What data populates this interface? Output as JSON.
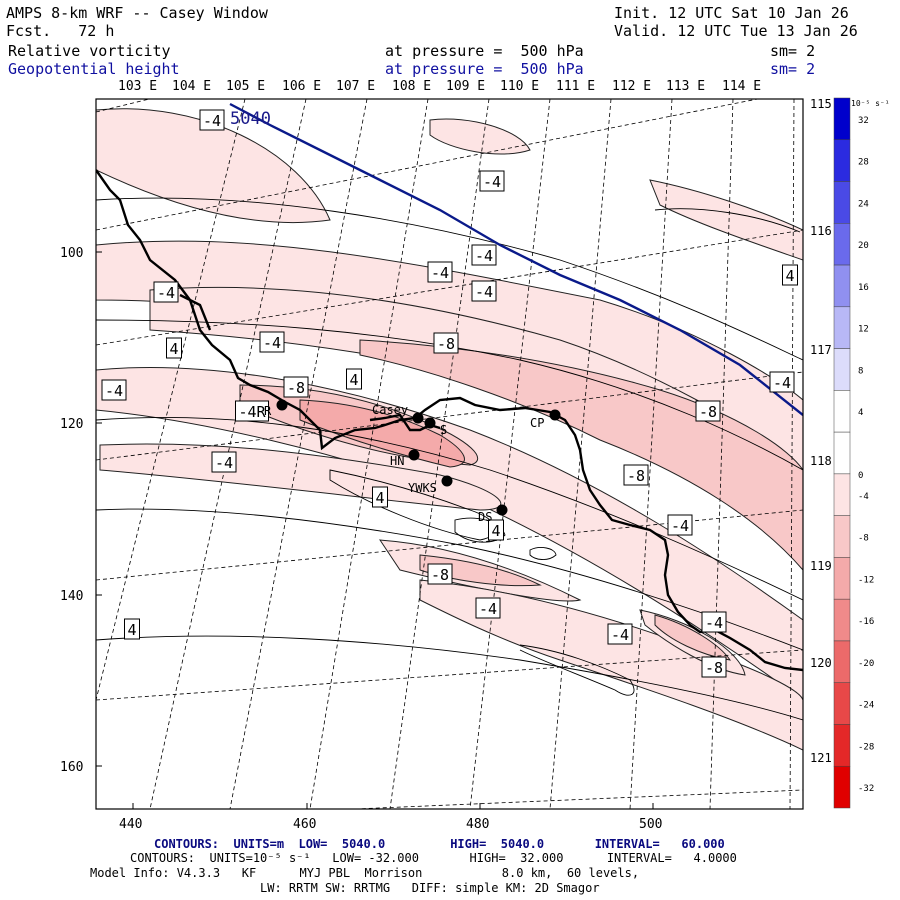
{
  "header": {
    "title": "AMPS 8-km WRF -- Casey Window",
    "forecast": "Fcst.   72 h",
    "init": "Init. 12 UTC Sat 10 Jan 26",
    "valid": "Valid. 12 UTC Tue 13 Jan 26",
    "field1_name": "Relative vorticity",
    "field1_pressure": "at pressure =  500 hPa",
    "field1_sm": "sm= 2",
    "field2_name": "Geopotential height",
    "field2_pressure": "at pressure =  500 hPa",
    "field2_sm": "sm= 2"
  },
  "map": {
    "top_longitudes": [
      "103 E",
      "104 E",
      "105 E",
      "106 E",
      "107 E",
      "108 E",
      "109 E",
      "110 E",
      "111 E",
      "112 E",
      "113 E",
      "114 E"
    ],
    "right_longitudes": [
      "115 E",
      "116 E",
      "117 E",
      "118 E",
      "119 E",
      "120 E",
      "121 E"
    ],
    "x_ticks": [
      "440",
      "460",
      "480",
      "500"
    ],
    "y_ticks": [
      "100",
      "120",
      "140",
      "160"
    ],
    "height_contour_label": "5040",
    "vorticity_labels": [
      "-4",
      "-4",
      "-4",
      "-4",
      "-4",
      "-4",
      "4",
      "-4",
      "4",
      "-4",
      "-8",
      "-8",
      "-4R",
      "4",
      "-4",
      "-4",
      "-8",
      "4",
      "4",
      "-8",
      "-4",
      "-4",
      "4",
      "-4",
      "-4",
      "-8",
      "-8"
    ],
    "stations": [
      {
        "name": "Casey",
        "symbol": "station-dot"
      },
      {
        "name": "CP",
        "symbol": "station-dot"
      },
      {
        "name": "HN",
        "symbol": "station-dot"
      },
      {
        "name": "YWKS",
        "symbol": "station-dot"
      },
      {
        "name": "DS",
        "symbol": "station-dot"
      },
      {
        "name": "S",
        "symbol": "station-dot"
      },
      {
        "name": "R",
        "symbol": "station-dot"
      }
    ]
  },
  "colorbar": {
    "units": "10⁻⁵ s⁻¹",
    "labels": [
      "32",
      "28",
      "24",
      "20",
      "16",
      "12",
      "8",
      "4",
      "0",
      "-4",
      "-8",
      "-12",
      "-16",
      "-20",
      "-24",
      "-28",
      "-32"
    ],
    "colors": [
      "#0000cc",
      "#2b2be0",
      "#4a4ae6",
      "#6a6aec",
      "#9090f0",
      "#b8b8f6",
      "#dcdcfb",
      "#ffffff",
      "#ffffff",
      "#fde4e4",
      "#f8c8c8",
      "#f4aaaa",
      "#f08a8a",
      "#ec6a6a",
      "#e84848",
      "#e42828",
      "#e00000"
    ]
  },
  "footer": {
    "line1": "CONTOURS:  UNITS=m  LOW=  5040.0         HIGH=  5040.0       INTERVAL=   60.000",
    "line2": "CONTOURS:  UNITS=10⁻⁵ s⁻¹   LOW= -32.000       HIGH=  32.000      INTERVAL=   4.0000",
    "line3": "Model Info: V4.3.3   KF      MYJ PBL  Morrison           8.0 km,  60 levels,",
    "line4": "LW: RRTM SW: RRTMG   DIFF: simple KM: 2D Smagor"
  }
}
